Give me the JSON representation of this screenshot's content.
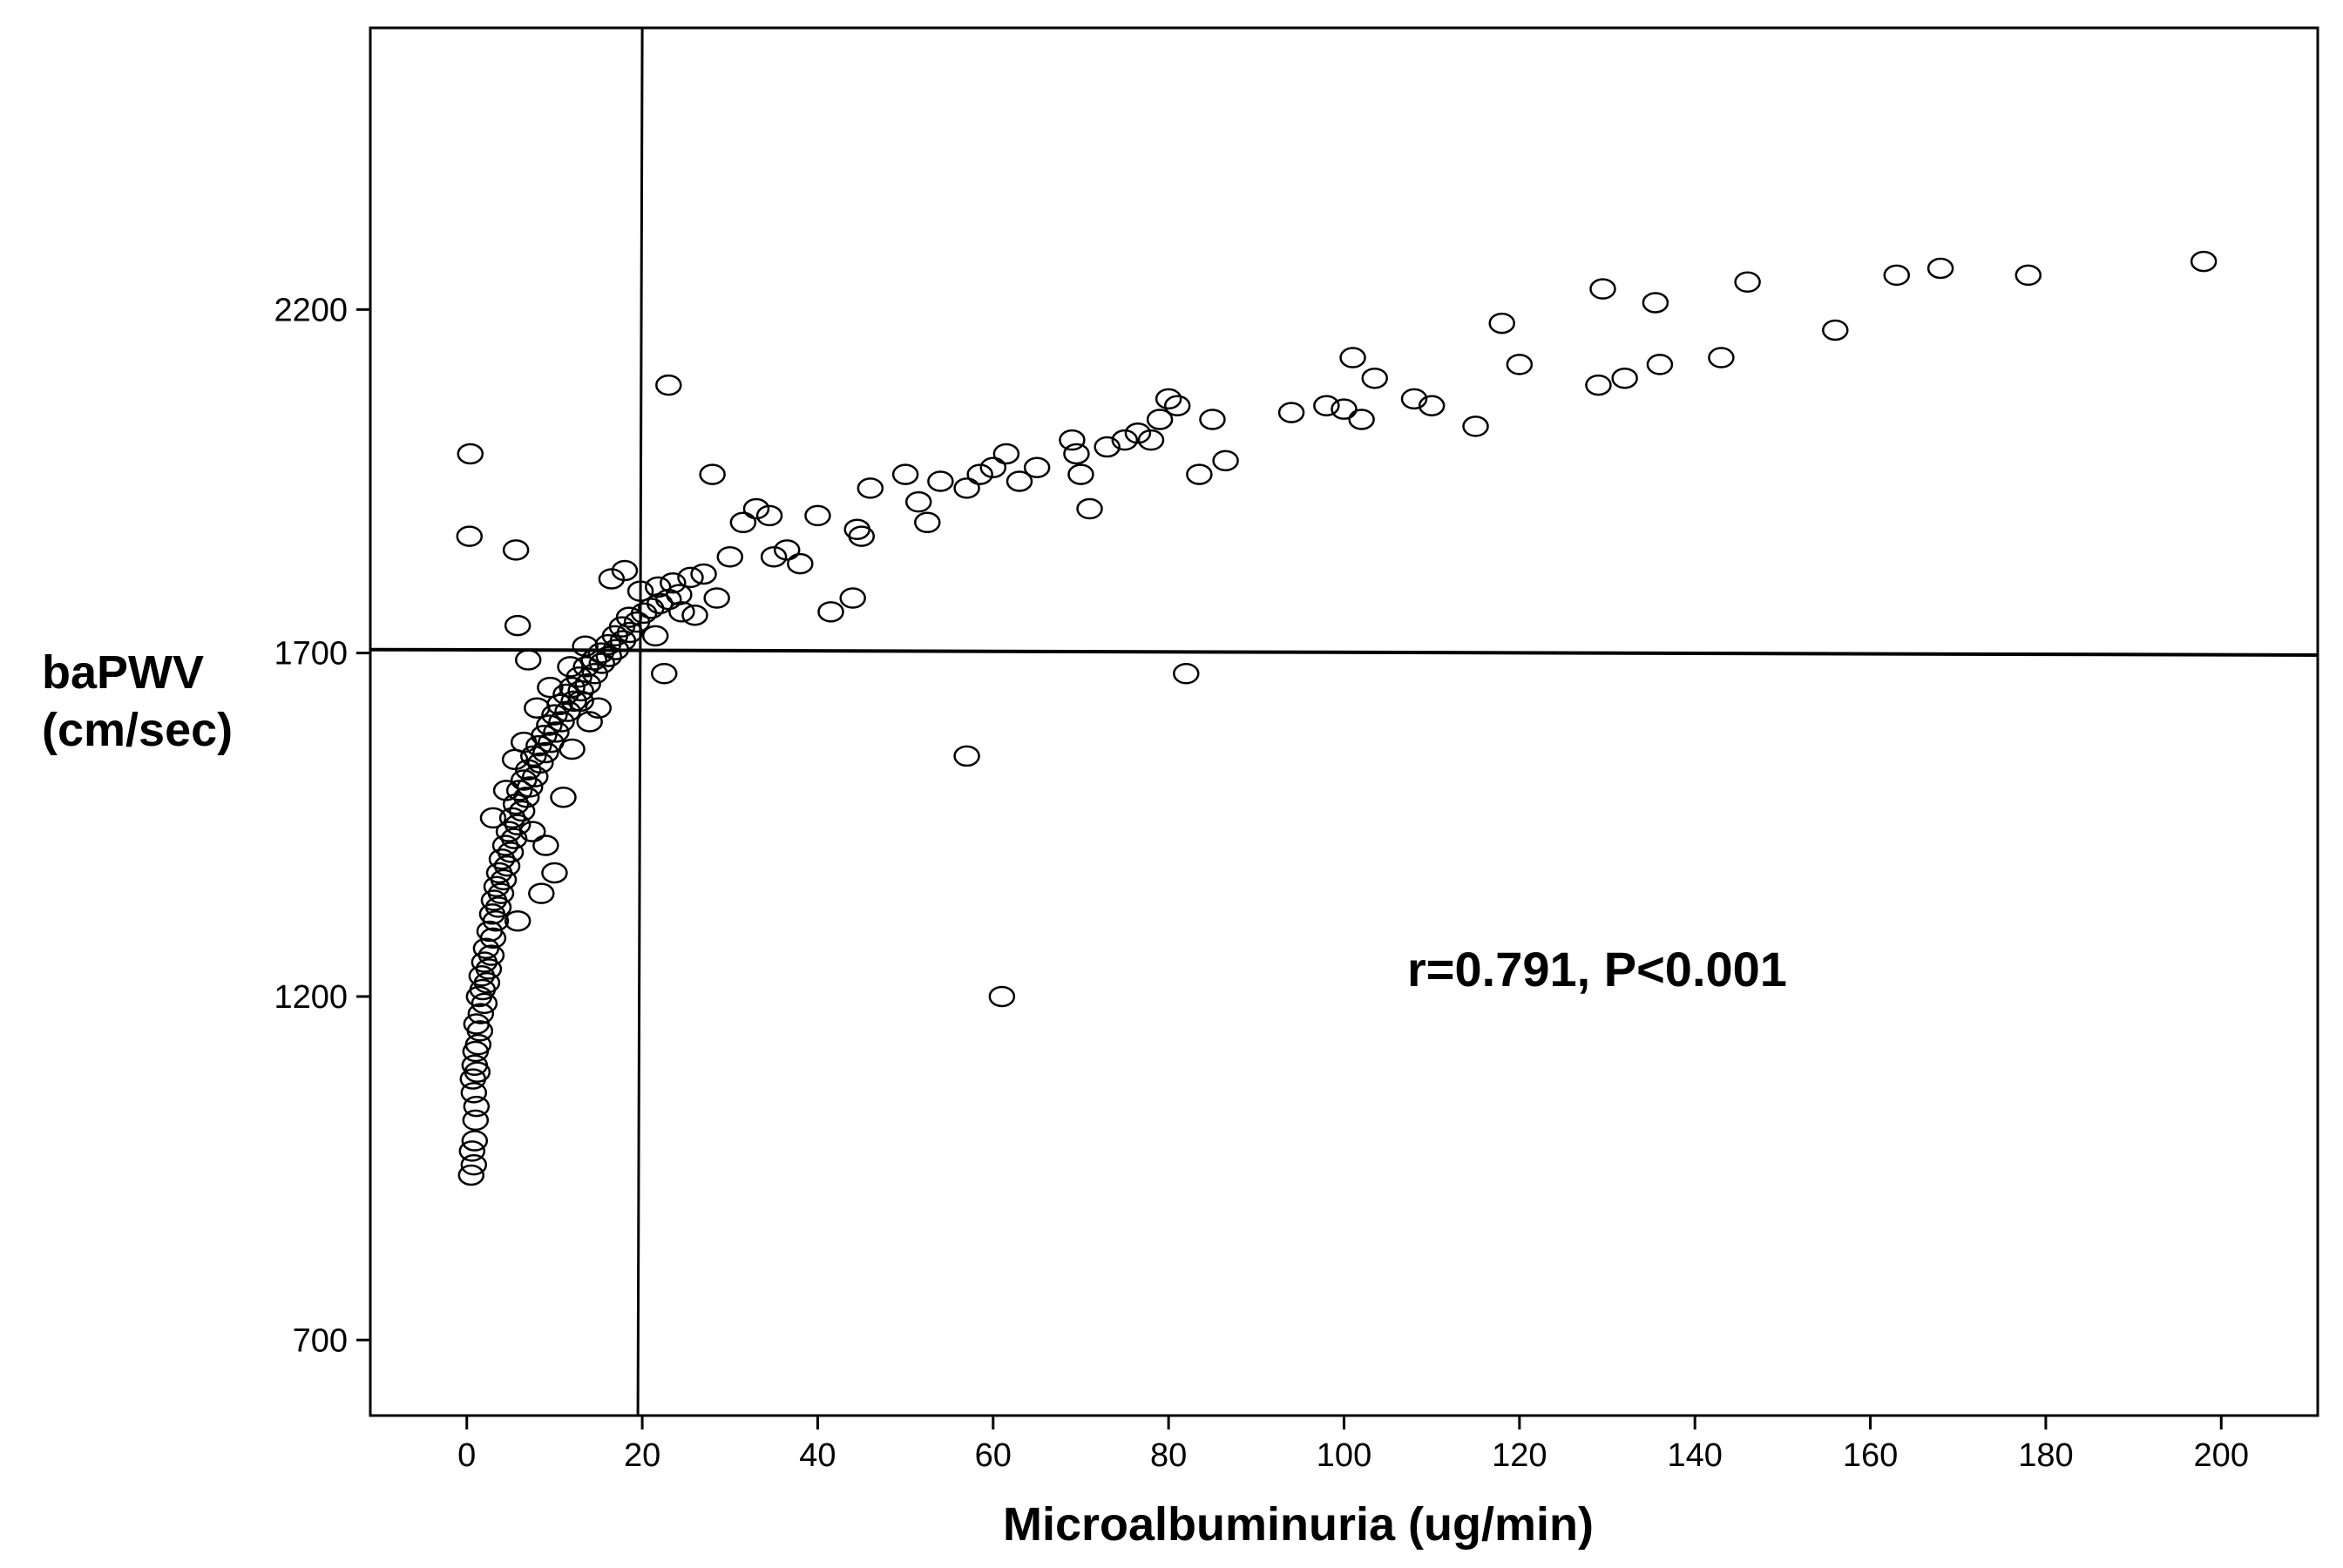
{
  "chart_data": {
    "type": "scatter",
    "title": "",
    "xlabel": "Microalbuminuria (ug/min)",
    "ylabel_line1": "baPWV",
    "ylabel_line2": "(cm/sec)",
    "xlim": [
      -11,
      211
    ],
    "ylim": [
      590,
      2610
    ],
    "xticks": [
      0,
      20,
      40,
      60,
      80,
      100,
      120,
      140,
      160,
      180,
      200
    ],
    "yticks": [
      700,
      1200,
      1700,
      2200
    ],
    "xtick_labels": [
      "0",
      "20",
      "40",
      "60",
      "80",
      "100",
      "120",
      "140",
      "160",
      "180",
      "200"
    ],
    "ytick_labels": [
      "700",
      "1200",
      "1700",
      "2200"
    ],
    "reference_lines": {
      "x": 20,
      "y_start": 1705,
      "y_end": 1697
    },
    "annotation": "r=0.791, P<0.001",
    "grid": false,
    "legend": "none",
    "marker": "open-circle",
    "points": [
      [
        0.5,
        940
      ],
      [
        0.8,
        955
      ],
      [
        0.6,
        975
      ],
      [
        0.9,
        990
      ],
      [
        1.0,
        1020
      ],
      [
        1.1,
        1040
      ],
      [
        0.8,
        1060
      ],
      [
        0.7,
        1080
      ],
      [
        1.2,
        1090
      ],
      [
        0.9,
        1100
      ],
      [
        1.0,
        1120
      ],
      [
        1.3,
        1130
      ],
      [
        1.5,
        1150
      ],
      [
        1.1,
        1160
      ],
      [
        1.6,
        1175
      ],
      [
        2.0,
        1190
      ],
      [
        1.4,
        1200
      ],
      [
        1.8,
        1210
      ],
      [
        2.3,
        1220
      ],
      [
        1.7,
        1230
      ],
      [
        2.5,
        1240
      ],
      [
        2.0,
        1250
      ],
      [
        2.8,
        1260
      ],
      [
        2.2,
        1270
      ],
      [
        3.0,
        1285
      ],
      [
        2.6,
        1295
      ],
      [
        3.3,
        1310
      ],
      [
        2.9,
        1320
      ],
      [
        3.6,
        1330
      ],
      [
        3.1,
        1340
      ],
      [
        3.9,
        1350
      ],
      [
        3.4,
        1360
      ],
      [
        4.2,
        1370
      ],
      [
        3.7,
        1380
      ],
      [
        4.6,
        1390
      ],
      [
        4.0,
        1400
      ],
      [
        5.0,
        1410
      ],
      [
        4.4,
        1420
      ],
      [
        5.4,
        1430
      ],
      [
        4.8,
        1440
      ],
      [
        5.8,
        1450
      ],
      [
        5.2,
        1460
      ],
      [
        6.3,
        1470
      ],
      [
        5.6,
        1480
      ],
      [
        6.8,
        1490
      ],
      [
        6.0,
        1500
      ],
      [
        7.2,
        1505
      ],
      [
        6.5,
        1515
      ],
      [
        7.8,
        1520
      ],
      [
        7.0,
        1530
      ],
      [
        8.4,
        1540
      ],
      [
        7.6,
        1550
      ],
      [
        9.0,
        1555
      ],
      [
        8.2,
        1565
      ],
      [
        9.6,
        1570
      ],
      [
        8.8,
        1580
      ],
      [
        10.2,
        1585
      ],
      [
        9.4,
        1595
      ],
      [
        10.8,
        1600
      ],
      [
        10.0,
        1610
      ],
      [
        11.5,
        1615
      ],
      [
        10.6,
        1625
      ],
      [
        12.2,
        1630
      ],
      [
        11.3,
        1640
      ],
      [
        13.0,
        1645
      ],
      [
        12.0,
        1650
      ],
      [
        13.8,
        1655
      ],
      [
        12.8,
        1665
      ],
      [
        14.6,
        1670
      ],
      [
        13.6,
        1680
      ],
      [
        15.4,
        1685
      ],
      [
        14.5,
        1690
      ],
      [
        16.2,
        1695
      ],
      [
        15.3,
        1700
      ],
      [
        17.0,
        1705
      ],
      [
        16.1,
        1712
      ],
      [
        17.8,
        1718
      ],
      [
        16.9,
        1725
      ],
      [
        18.6,
        1730
      ],
      [
        17.7,
        1738
      ],
      [
        19.4,
        1745
      ],
      [
        18.5,
        1752
      ],
      [
        20.2,
        1758
      ],
      [
        21.0,
        1765
      ],
      [
        22.0,
        1772
      ],
      [
        23.0,
        1778
      ],
      [
        24.2,
        1785
      ],
      [
        19.8,
        1790
      ],
      [
        21.8,
        1796
      ],
      [
        23.5,
        1802
      ],
      [
        25.5,
        1810
      ],
      [
        27.0,
        1815
      ],
      [
        16.5,
        1808
      ],
      [
        18.0,
        1820
      ],
      [
        3.0,
        1460
      ],
      [
        4.5,
        1500
      ],
      [
        5.5,
        1545
      ],
      [
        6.5,
        1570
      ],
      [
        8.0,
        1620
      ],
      [
        9.5,
        1650
      ],
      [
        7.5,
        1440
      ],
      [
        9.0,
        1420
      ],
      [
        11.0,
        1490
      ],
      [
        12.0,
        1560
      ],
      [
        14.0,
        1600
      ],
      [
        5.8,
        1310
      ],
      [
        10.0,
        1380
      ],
      [
        8.5,
        1350
      ],
      [
        13.0,
        1630
      ],
      [
        15.0,
        1620
      ],
      [
        11.8,
        1680
      ],
      [
        13.5,
        1710
      ],
      [
        7.0,
        1690
      ],
      [
        0.3,
        1870
      ],
      [
        0.4,
        1990
      ],
      [
        5.6,
        1850
      ],
      [
        5.8,
        1740
      ],
      [
        23.0,
        2090
      ],
      [
        28.0,
        1960
      ],
      [
        22.5,
        1670
      ],
      [
        21.5,
        1725
      ],
      [
        26.0,
        1755
      ],
      [
        28.5,
        1780
      ],
      [
        24.5,
        1760
      ],
      [
        30.0,
        1840
      ],
      [
        31.5,
        1890
      ],
      [
        33.0,
        1910
      ],
      [
        34.5,
        1900
      ],
      [
        35.0,
        1840
      ],
      [
        36.5,
        1850
      ],
      [
        38.0,
        1830
      ],
      [
        40.0,
        1900
      ],
      [
        41.5,
        1760
      ],
      [
        44.0,
        1780
      ],
      [
        45.0,
        1870
      ],
      [
        46.0,
        1940
      ],
      [
        44.5,
        1880
      ],
      [
        50.0,
        1960
      ],
      [
        51.5,
        1920
      ],
      [
        52.5,
        1890
      ],
      [
        54.0,
        1950
      ],
      [
        57.0,
        1940
      ],
      [
        58.5,
        1960
      ],
      [
        60.0,
        1970
      ],
      [
        61.5,
        1990
      ],
      [
        63.0,
        1950
      ],
      [
        65.0,
        1970
      ],
      [
        57.0,
        1550
      ],
      [
        61.0,
        1200
      ],
      [
        69.0,
        2010
      ],
      [
        69.5,
        1990
      ],
      [
        70.0,
        1960
      ],
      [
        71.0,
        1910
      ],
      [
        73.0,
        2000
      ],
      [
        75.0,
        2010
      ],
      [
        76.5,
        2020
      ],
      [
        78.0,
        2010
      ],
      [
        79.0,
        2040
      ],
      [
        80.0,
        2070
      ],
      [
        81.0,
        2060
      ],
      [
        82.0,
        1670
      ],
      [
        83.5,
        1960
      ],
      [
        85.0,
        2040
      ],
      [
        86.5,
        1980
      ],
      [
        94.0,
        2050
      ],
      [
        98.0,
        2060
      ],
      [
        100.0,
        2055
      ],
      [
        101.0,
        2130
      ],
      [
        102.0,
        2040
      ],
      [
        103.5,
        2100
      ],
      [
        108.0,
        2070
      ],
      [
        110.0,
        2060
      ],
      [
        115.0,
        2030
      ],
      [
        118.0,
        2180
      ],
      [
        120.0,
        2120
      ],
      [
        129.0,
        2090
      ],
      [
        129.5,
        2230
      ],
      [
        132.0,
        2100
      ],
      [
        135.5,
        2210
      ],
      [
        136.0,
        2120
      ],
      [
        143.0,
        2130
      ],
      [
        146.0,
        2240
      ],
      [
        156.0,
        2170
      ],
      [
        163.0,
        2250
      ],
      [
        168.0,
        2260
      ],
      [
        178.0,
        2250
      ],
      [
        198.0,
        2270
      ]
    ]
  }
}
